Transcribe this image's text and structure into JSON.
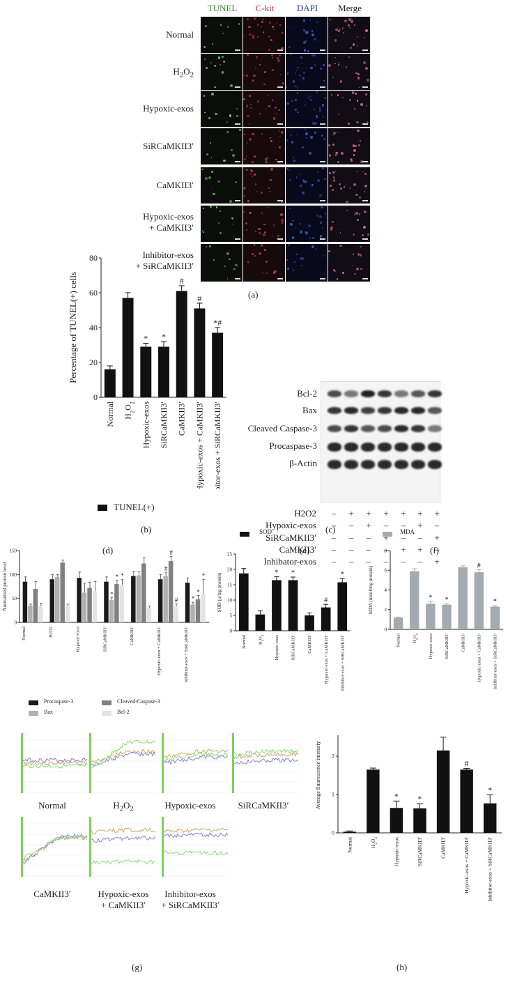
{
  "panel_a": {
    "columns": [
      "TUNEL",
      "C-kit",
      "DAPI",
      "Merge"
    ],
    "column_colors": [
      "#3d8a2e",
      "#c0344a",
      "#2c3e7a",
      "#222222"
    ],
    "rows": [
      "Normal",
      "H2O2",
      "Hypoxic-exos",
      "SiRCaMKII3′",
      "CaMKII3′",
      "Hypoxic-exos\n+ CaMKII3′",
      "Inhibitor-exos\n+ SiRCaMKII3′"
    ],
    "caption": "(a)"
  },
  "panel_b": {
    "caption": "(b)",
    "legend": "TUNEL(+)",
    "chart_data": {
      "type": "bar",
      "ylabel": "Percentage of TUNEL(+) cells",
      "ylim": [
        0,
        80
      ],
      "yticks": [
        0,
        20,
        40,
        60,
        80
      ],
      "categories": [
        "Normal",
        "H2O2",
        "Hypoxic-exos",
        "SiRCaMKII3′",
        "CaMKII3′",
        "Hypoxic-exos + CaMKII3′",
        "Inhibitor-exos + SiRCaMKII3′"
      ],
      "values": [
        16,
        57,
        29,
        29,
        61,
        51,
        37
      ],
      "errors": [
        2,
        3,
        2,
        3,
        3,
        3,
        3
      ],
      "marks": [
        "",
        "",
        "*",
        "*",
        "#",
        "#",
        "*#"
      ]
    }
  },
  "panel_c": {
    "caption": "(c)",
    "bands": [
      "Bcl-2",
      "Bax",
      "Cleaved Caspase-3",
      "Procaspase-3",
      "β-Actin"
    ],
    "conditions": [
      {
        "name": "H2O2",
        "signs": [
          "–",
          "+",
          "+",
          "+",
          "+",
          "+",
          "+"
        ]
      },
      {
        "name": "Hypoxic-exos",
        "signs": [
          "–",
          "–",
          "+",
          "–",
          "–",
          "+",
          "–"
        ]
      },
      {
        "name": "SiRCaMKII3′",
        "signs": [
          "–",
          "–",
          "–",
          "+",
          "–",
          "–",
          "+"
        ]
      },
      {
        "name": "CaMKII3′",
        "signs": [
          "–",
          "–",
          "–",
          "–",
          "+",
          "+",
          "–"
        ]
      },
      {
        "name": "Inhibator-exos",
        "signs": [
          "–",
          "–",
          "–",
          "–",
          "–",
          "–",
          "+"
        ]
      }
    ]
  },
  "panel_d": {
    "caption": "(d)",
    "chart_data": {
      "type": "bar",
      "ylabel": "Normalized protein level",
      "ylim": [
        0,
        150
      ],
      "yticks": [
        0,
        50,
        100,
        150
      ],
      "categories": [
        "Normal",
        "H2O2",
        "Hypoxic-exos",
        "SiRCaMKII3′",
        "CaMKII3′",
        "Hypoxic-exos + CaMKII3′",
        "Inhibitor-exos + SiRCaMKII3′"
      ],
      "series": [
        {
          "name": "Procaspase-3",
          "color": "#1a1a1a",
          "values": [
            85,
            90,
            93,
            85,
            97,
            90,
            83
          ],
          "errors": [
            10,
            10,
            12,
            10,
            10,
            10,
            10
          ]
        },
        {
          "name": "Bax",
          "color": "#b0b0b0",
          "values": [
            35,
            95,
            62,
            47,
            98,
            97,
            37
          ],
          "errors": [
            3,
            5,
            20,
            5,
            8,
            8,
            5
          ],
          "marks": [
            "",
            "",
            "",
            "*",
            "",
            "#",
            "*"
          ]
        },
        {
          "name": "Cleaved-Caspase-3",
          "color": "#808080",
          "values": [
            70,
            125,
            72,
            80,
            123,
            128,
            48
          ],
          "errors": [
            15,
            5,
            12,
            8,
            12,
            10,
            8
          ],
          "marks": [
            "",
            "",
            "",
            "*",
            "",
            "#",
            "*"
          ]
        },
        {
          "name": "Bcl-2",
          "color": "#e3e3e3",
          "values": [
            34,
            34,
            65,
            78,
            30,
            34,
            60
          ],
          "errors": [
            6,
            4,
            20,
            12,
            4,
            5,
            30
          ],
          "marks": [
            "",
            "",
            "",
            "*",
            "",
            "#",
            "*"
          ]
        }
      ]
    }
  },
  "panel_e": {
    "caption": "(e)",
    "legend": "SOD",
    "chart_data": {
      "type": "bar",
      "ylabel": "SOD (μ/mg protein)",
      "ylim": [
        0,
        25
      ],
      "yticks": [
        0,
        5,
        10,
        15,
        20,
        25
      ],
      "categories": [
        "Normal",
        "H2O2",
        "Hypoxic-exos",
        "SiRCaMKII3′",
        "CaMKII3′",
        "Hypoxic-exos + CaMKII3′",
        "Inhibitor-exos + SiRCaMKII3′"
      ],
      "values": [
        18.7,
        5.3,
        16.5,
        16.5,
        5.0,
        7.6,
        15.8
      ],
      "errors": [
        1.6,
        1.2,
        1.1,
        1.0,
        0.8,
        1.0,
        1.2
      ],
      "marks": [
        "",
        "",
        "*",
        "*",
        "",
        "#",
        "*"
      ]
    }
  },
  "panel_f": {
    "caption": "(f)",
    "legend": "MDA",
    "chart_data": {
      "type": "bar",
      "ylabel": "MDA (nmol/mg protein)",
      "ylim": [
        0,
        8
      ],
      "yticks": [
        0,
        2,
        4,
        6,
        8
      ],
      "categories": [
        "Normal",
        "H2O2",
        "Hypoxic-exos",
        "SiRCaMKII3′",
        "CaMKII3′",
        "Hypoxic-exos + CaMKII3′",
        "Inhibitor-exos + SiRCaMKII3′"
      ],
      "values": [
        1.2,
        5.9,
        2.6,
        2.5,
        6.3,
        5.8,
        2.3
      ],
      "errors": [
        0.05,
        0.25,
        0.2,
        0.1,
        0.15,
        0.25,
        0.1
      ],
      "marks": [
        "",
        "",
        "*",
        "*",
        "",
        "#",
        "*"
      ]
    }
  },
  "panel_g": {
    "caption": "(g)",
    "labels": [
      "Normal",
      "H2O2",
      "Hypoxic-exos",
      "SiRCaMKII3′",
      "CaMKII3′",
      "Hypoxic-exos\n+ CaMKII3′",
      "Inhibitor-exos\n+ SiRCaMKII3′"
    ],
    "trace_colors": [
      "#c8a060",
      "#7a78c8",
      "#7fd86a"
    ]
  },
  "panel_h": {
    "caption": "(h)",
    "chart_data": {
      "type": "bar",
      "ylabel": "Average fluorescence intensity",
      "ylim": [
        0,
        3
      ],
      "yticks": [
        0,
        1,
        2,
        3
      ],
      "categories": [
        "Normal",
        "H2O2",
        "Hypoxic-exos",
        "SiRCaMKII3′",
        "CaMKII3′",
        "Hypoxic-exos + CaMKII3′",
        "Inhibitor-exos + SiRCaMKII3′"
      ],
      "values": [
        0.03,
        1.65,
        0.65,
        0.64,
        2.15,
        1.65,
        0.77
      ],
      "errors": [
        0.02,
        0.04,
        0.18,
        0.12,
        0.35,
        0.03,
        0.22
      ],
      "marks": [
        "",
        "",
        "*",
        "*",
        "*#",
        "#",
        "*"
      ]
    }
  }
}
